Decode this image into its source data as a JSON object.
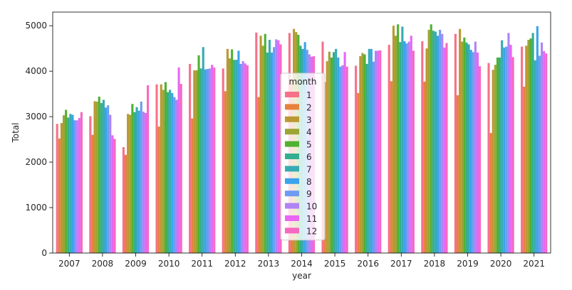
{
  "chart_data": {
    "type": "bar",
    "xlabel": "year",
    "ylabel": "Total",
    "ylim": [
      0,
      5300
    ],
    "yticks": [
      0,
      1000,
      2000,
      3000,
      4000,
      5000
    ],
    "categories": [
      "2007",
      "2008",
      "2009",
      "2010",
      "2011",
      "2012",
      "2013",
      "2014",
      "2015",
      "2016",
      "2017",
      "2018",
      "2019",
      "2020",
      "2021"
    ],
    "legend": {
      "title": "month",
      "position": "center"
    },
    "series": [
      {
        "name": "1",
        "color": "#f77189",
        "values": [
          2840,
          3010,
          2330,
          3710,
          4160,
          4060,
          4850,
          4840,
          4650,
          4120,
          4580,
          4660,
          4820,
          4180,
          4540
        ]
      },
      {
        "name": "2",
        "color": "#e7813e",
        "values": [
          2520,
          2600,
          2160,
          2780,
          2960,
          3560,
          3430,
          3800,
          3760,
          3520,
          3780,
          3770,
          3470,
          2640,
          3660
        ]
      },
      {
        "name": "3",
        "color": "#bb9832",
        "values": [
          2860,
          3340,
          3060,
          3710,
          4020,
          4490,
          4780,
          4930,
          4220,
          4330,
          5000,
          4500,
          4930,
          4030,
          4560
        ]
      },
      {
        "name": "4",
        "color": "#9ca436",
        "values": [
          3030,
          3330,
          3040,
          3590,
          4020,
          4280,
          4560,
          4860,
          4430,
          4400,
          4780,
          4910,
          4650,
          4140,
          4690
        ]
      },
      {
        "name": "5",
        "color": "#50b131",
        "values": [
          3150,
          3440,
          3280,
          3760,
          4350,
          4480,
          4820,
          4800,
          4300,
          4370,
          5030,
          5030,
          4740,
          4300,
          4720
        ]
      },
      {
        "name": "6",
        "color": "#34ae91",
        "values": [
          2980,
          3300,
          3100,
          3540,
          4060,
          4250,
          4410,
          4560,
          4420,
          4160,
          4640,
          4890,
          4630,
          4300,
          4840
        ]
      },
      {
        "name": "7",
        "color": "#37abb4",
        "values": [
          3060,
          3370,
          3210,
          3590,
          4530,
          4250,
          4690,
          4490,
          4490,
          4490,
          4980,
          4870,
          4590,
          4680,
          4240
        ]
      },
      {
        "name": "8",
        "color": "#3ba3ec",
        "values": [
          3040,
          3200,
          3130,
          3520,
          4040,
          4450,
          4410,
          4640,
          4300,
          4490,
          4660,
          4780,
          4470,
          4520,
          4990
        ]
      },
      {
        "name": "9",
        "color": "#6e9bf4",
        "values": [
          2920,
          3250,
          3330,
          3430,
          4050,
          4160,
          4530,
          4470,
          4100,
          4210,
          4610,
          4910,
          4420,
          4540,
          4340
        ]
      },
      {
        "name": "10",
        "color": "#b083f4",
        "values": [
          2920,
          3040,
          3110,
          3370,
          4060,
          4220,
          4700,
          4370,
          4130,
          4450,
          4650,
          4820,
          4650,
          4840,
          4630
        ]
      },
      {
        "name": "11",
        "color": "#e866f4",
        "values": [
          2970,
          2590,
          3080,
          4080,
          4140,
          4170,
          4680,
          4320,
          4420,
          4450,
          4780,
          4520,
          4410,
          4580,
          4440
        ]
      },
      {
        "name": "12",
        "color": "#f668c2",
        "values": [
          3100,
          2510,
          3690,
          3720,
          4080,
          4130,
          4590,
          4330,
          4100,
          4460,
          4450,
          4620,
          4110,
          4310,
          4390
        ]
      }
    ]
  }
}
